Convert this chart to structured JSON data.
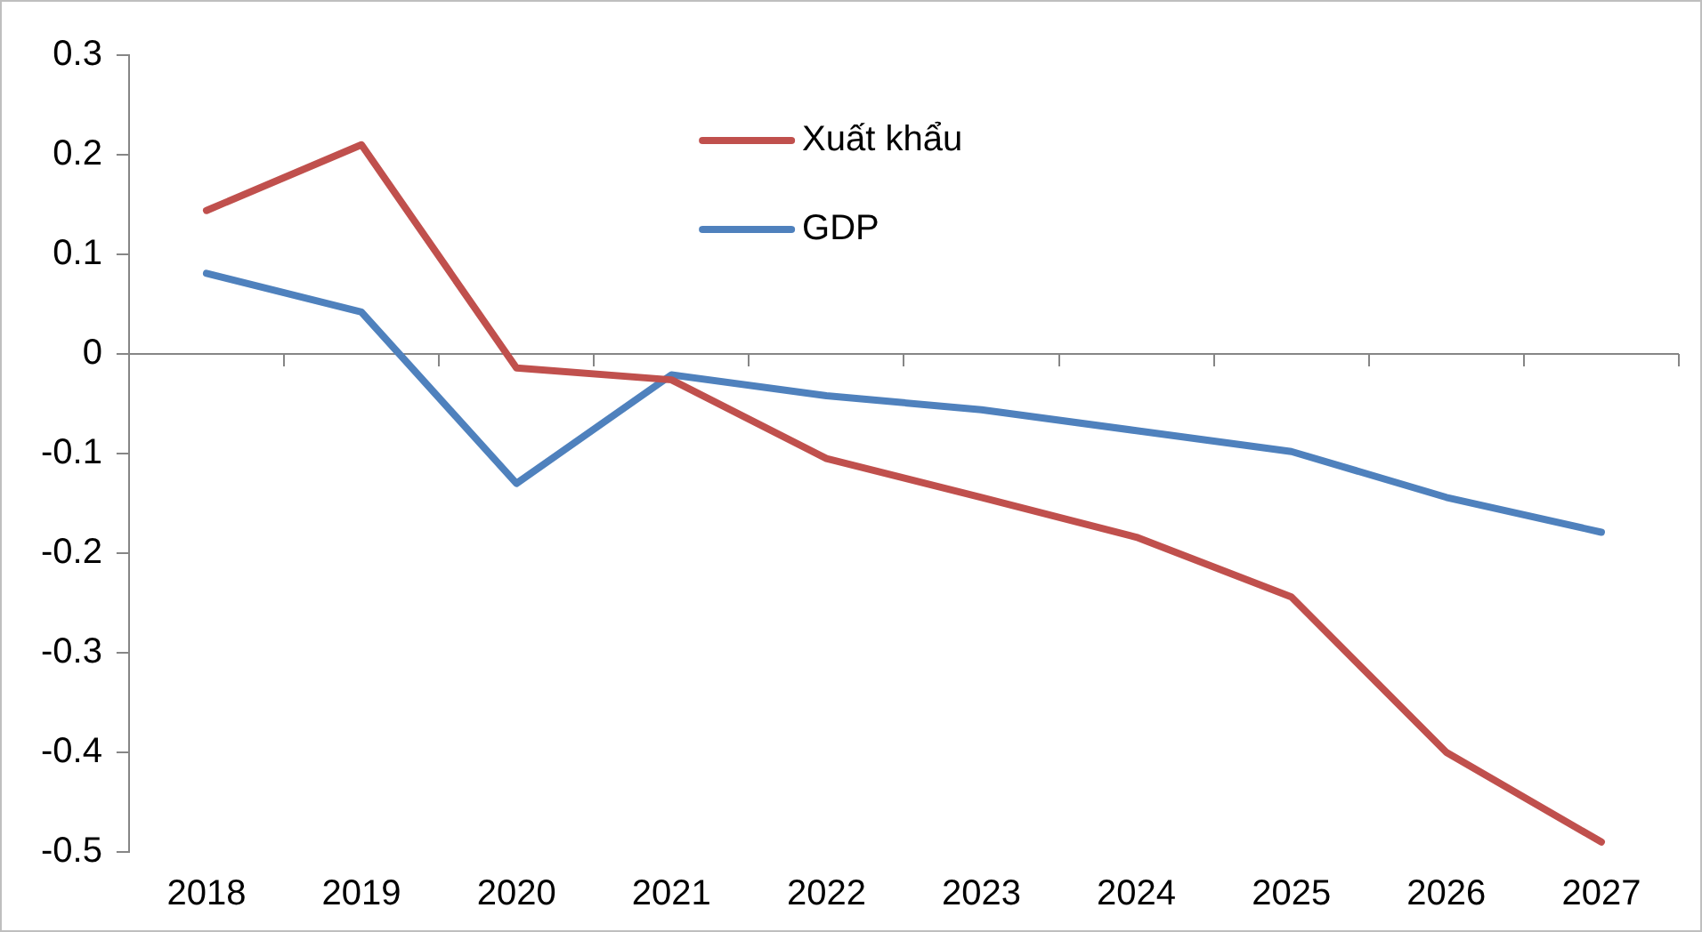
{
  "chart_data": {
    "type": "line",
    "categories": [
      "2018",
      "2019",
      "2020",
      "2021",
      "2022",
      "2023",
      "2024",
      "2025",
      "2026",
      "2027"
    ],
    "series": [
      {
        "name": "Xuất khẩu",
        "color": "#c0504d",
        "values": [
          0.144,
          0.21,
          -0.014,
          -0.026,
          -0.105,
          -0.144,
          -0.184,
          -0.244,
          -0.4,
          -0.49
        ]
      },
      {
        "name": "GDP",
        "color": "#4f81bd",
        "values": [
          0.081,
          0.042,
          -0.13,
          -0.021,
          -0.042,
          -0.056,
          -0.077,
          -0.098,
          -0.144,
          -0.179
        ]
      }
    ],
    "ylim": [
      -0.5,
      0.3
    ],
    "yticks": [
      -0.5,
      -0.4,
      -0.3,
      -0.2,
      -0.1,
      0,
      0.1,
      0.2,
      0.3
    ],
    "ref_lines": [
      {
        "axis": "y",
        "value": 0,
        "color": "#868686"
      }
    ],
    "grid": false,
    "legend": "top",
    "marker": "none",
    "line_style": "solid"
  }
}
